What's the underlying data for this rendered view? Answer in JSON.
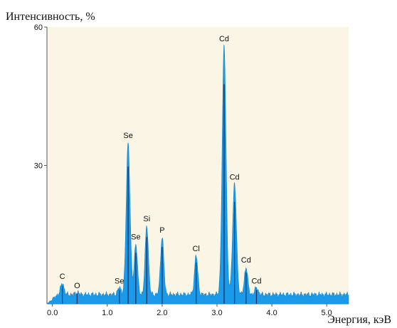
{
  "chart_data": {
    "type": "area",
    "ylabel": "Интенсивность, %",
    "xlabel": "Энергия, кэВ",
    "xlim": [
      -0.1,
      5.4
    ],
    "ylim": [
      0,
      60
    ],
    "x_ticks": [
      0.0,
      1.0,
      2.0,
      3.0,
      4.0,
      5.0
    ],
    "x_tick_labels": [
      "0.0",
      "1.0",
      "2.0",
      "3.0",
      "4.0",
      "5.0"
    ],
    "y_ticks": [
      30,
      60
    ],
    "y_tick_labels": [
      "30",
      "60"
    ],
    "colors": {
      "spectrum": "#1a9ae8",
      "plot_background": "#fbf5e6",
      "marker_lines": "#1a2b55"
    },
    "baseline": 2.0,
    "series": [
      {
        "peaks": [
          {
            "label": "C",
            "energy": 0.18,
            "height": 4.5
          },
          {
            "label": "O",
            "energy": 0.45,
            "height": 2.5
          },
          {
            "label": "Se",
            "energy": 1.22,
            "height": 3.5
          },
          {
            "label": "Se",
            "energy": 1.38,
            "height": 35.0
          },
          {
            "label": "Se",
            "energy": 1.52,
            "height": 13.0
          },
          {
            "label": "Si",
            "energy": 1.72,
            "height": 17.0
          },
          {
            "label": "P",
            "energy": 2.0,
            "height": 14.5
          },
          {
            "label": "Cl",
            "energy": 2.62,
            "height": 10.5
          },
          {
            "label": "Cd",
            "energy": 3.13,
            "height": 56.0
          },
          {
            "label": "Cd",
            "energy": 3.32,
            "height": 26.0
          },
          {
            "label": "Cd",
            "energy": 3.53,
            "height": 8.0
          },
          {
            "label": "Cd",
            "energy": 3.72,
            "height": 3.5
          }
        ]
      }
    ]
  }
}
